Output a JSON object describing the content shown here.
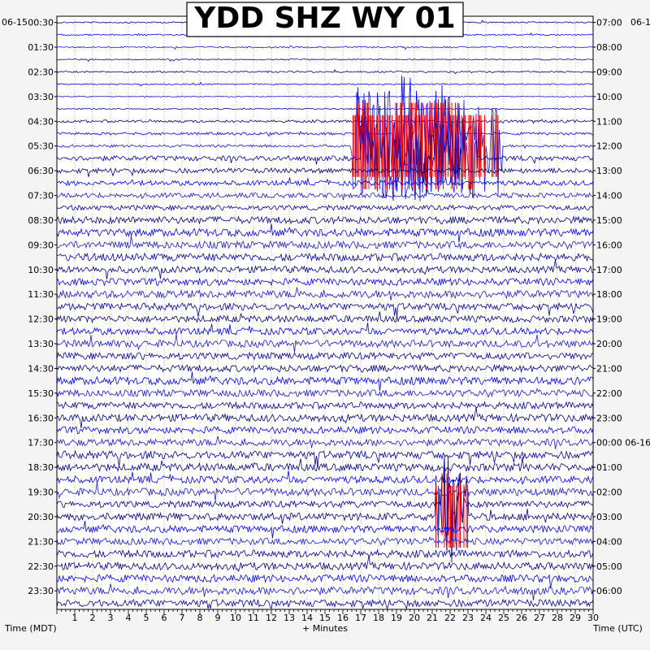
{
  "chart_data": {
    "type": "helicorder",
    "title": "YDD SHZ WY 01",
    "xlabel": "+ Minutes",
    "left_axis_label": "Time (MDT)",
    "right_axis_label": "Time (UTC)",
    "left_date": "06-15",
    "right_date": "06-1",
    "right_date_change": "06-16",
    "x_ticks": [
      "1",
      "2",
      "3",
      "4",
      "5",
      "6",
      "7",
      "8",
      "9",
      "10",
      "11",
      "12",
      "13",
      "14",
      "15",
      "16",
      "17",
      "18",
      "19",
      "20",
      "21",
      "22",
      "23",
      "24",
      "25",
      "26",
      "27",
      "28",
      "29",
      "30"
    ],
    "xlim": [
      0,
      30
    ],
    "left_hours": [
      "00:30",
      "01:30",
      "02:30",
      "03:30",
      "04:30",
      "05:30",
      "06:30",
      "07:30",
      "08:30",
      "09:30",
      "10:30",
      "11:30",
      "12:30",
      "13:30",
      "14:30",
      "15:30",
      "16:30",
      "17:30",
      "18:30",
      "19:30",
      "20:30",
      "21:30",
      "22:30",
      "23:30"
    ],
    "right_hours": [
      "07:00",
      "08:00",
      "09:00",
      "10:00",
      "11:00",
      "12:00",
      "13:00",
      "14:00",
      "15:00",
      "16:00",
      "17:00",
      "18:00",
      "19:00",
      "20:00",
      "21:00",
      "22:00",
      "23:00",
      "00:00",
      "01:00",
      "02:00",
      "03:00",
      "04:00",
      "05:00",
      "06:00"
    ],
    "trace_rows": 48,
    "trace_colors": [
      "#000080",
      "#0000ff",
      "#1a1ad0",
      "#0000a0"
    ],
    "clip_color": "#ff0000",
    "grid": true,
    "events": [
      {
        "row": 9,
        "start_min": 16.8,
        "end_min": 17.4,
        "amplitude": 1.4
      },
      {
        "row": 9,
        "start_min": 18.8,
        "end_min": 22.5,
        "amplitude": 1.6
      },
      {
        "row": 10,
        "start_min": 16.5,
        "end_min": 25.0,
        "amplitude": 1.5
      },
      {
        "row": 11,
        "start_min": 17.0,
        "end_min": 23.5,
        "amplitude": 1.2
      },
      {
        "row": 39,
        "start_min": 21.5,
        "end_min": 22.8,
        "amplitude": 1.4
      },
      {
        "row": 40,
        "start_min": 21.2,
        "end_min": 23.0,
        "amplitude": 1.5
      }
    ]
  }
}
